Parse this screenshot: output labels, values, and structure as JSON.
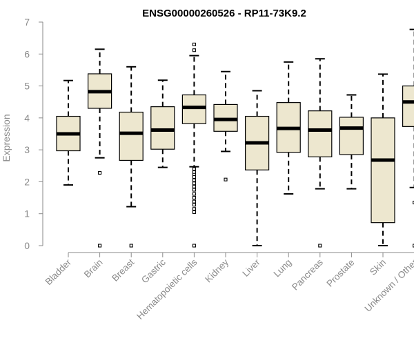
{
  "chart_data": {
    "type": "boxplot",
    "title": "ENSG00000260526 - RP11-73K9.2",
    "xlabel": "",
    "ylabel": "Expression",
    "ylim": [
      0,
      7
    ],
    "yticks": [
      0,
      1,
      2,
      3,
      4,
      5,
      6,
      7
    ],
    "grid": false,
    "colors": {
      "box_fill": "#ede7cf",
      "box_stroke": "#000000",
      "axis": "#8a8a8a"
    },
    "categories": [
      "Bladder",
      "Brain",
      "Breast",
      "Gastric",
      "Hematopoietic cells",
      "Kidney",
      "Liver",
      "Lung",
      "Pancreas",
      "Prostate",
      "Skin",
      "Unknown / Other"
    ],
    "boxes": [
      {
        "name": "Bladder",
        "whisker_low": 1.9,
        "q1": 2.97,
        "median": 3.5,
        "q3": 4.05,
        "whisker_high": 5.17,
        "outliers": []
      },
      {
        "name": "Brain",
        "whisker_low": 2.75,
        "q1": 4.3,
        "median": 4.82,
        "q3": 5.38,
        "whisker_high": 6.15,
        "outliers": [
          2.28,
          0
        ]
      },
      {
        "name": "Breast",
        "whisker_low": 1.22,
        "q1": 2.67,
        "median": 3.52,
        "q3": 4.18,
        "whisker_high": 5.6,
        "outliers": [
          0
        ]
      },
      {
        "name": "Gastric",
        "whisker_low": 2.45,
        "q1": 3.02,
        "median": 3.62,
        "q3": 4.35,
        "whisker_high": 5.18,
        "outliers": []
      },
      {
        "name": "Hematopoietic cells",
        "whisker_low": 2.47,
        "q1": 3.82,
        "median": 4.33,
        "q3": 4.72,
        "whisker_high": 5.95,
        "outliers": [
          6.3,
          6.12,
          2.4,
          2.3,
          2.22,
          2.15,
          2.05,
          1.95,
          1.85,
          1.75,
          1.62,
          1.5,
          1.38,
          1.28,
          1.15,
          1.05,
          0
        ]
      },
      {
        "name": "Kidney",
        "whisker_low": 2.95,
        "q1": 3.58,
        "median": 3.95,
        "q3": 4.42,
        "whisker_high": 5.45,
        "outliers": [
          2.07
        ]
      },
      {
        "name": "Liver",
        "whisker_low": 0,
        "q1": 2.37,
        "median": 3.22,
        "q3": 4.05,
        "whisker_high": 4.85,
        "outliers": []
      },
      {
        "name": "Lung",
        "whisker_low": 1.62,
        "q1": 2.92,
        "median": 3.67,
        "q3": 4.48,
        "whisker_high": 5.75,
        "outliers": []
      },
      {
        "name": "Pancreas",
        "whisker_low": 1.78,
        "q1": 2.78,
        "median": 3.62,
        "q3": 4.22,
        "whisker_high": 5.85,
        "outliers": [
          0
        ]
      },
      {
        "name": "Prostate",
        "whisker_low": 1.78,
        "q1": 2.85,
        "median": 3.68,
        "q3": 4.02,
        "whisker_high": 4.72,
        "outliers": []
      },
      {
        "name": "Skin",
        "whisker_low": 0,
        "q1": 0.72,
        "median": 2.68,
        "q3": 4.0,
        "whisker_high": 5.37,
        "outliers": []
      },
      {
        "name": "Unknown / Other",
        "whisker_low": 1.82,
        "q1": 3.73,
        "median": 4.5,
        "q3": 5.0,
        "whisker_high": 6.77,
        "outliers": [
          1.35,
          0
        ]
      }
    ]
  }
}
